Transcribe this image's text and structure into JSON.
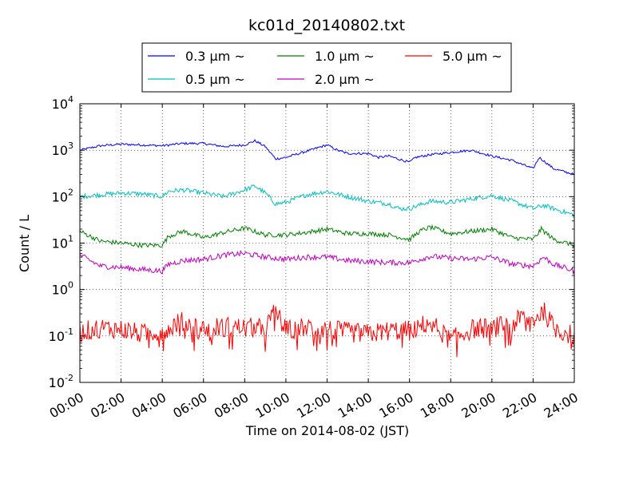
{
  "chart_data": {
    "type": "line",
    "title": "kc01d_20140802.txt",
    "xlabel": "Time on 2014-08-02 (JST)",
    "ylabel": "Count / L",
    "yscale": "log",
    "grid": true,
    "legend_position": "top-center, above plot, 3 columns",
    "x_ticks": [
      "00:00",
      "02:00",
      "04:00",
      "06:00",
      "08:00",
      "10:00",
      "12:00",
      "14:00",
      "16:00",
      "18:00",
      "20:00",
      "22:00",
      "24:00"
    ],
    "y_ticks": [
      {
        "base": "10",
        "exp": "-2"
      },
      {
        "base": "10",
        "exp": "-1"
      },
      {
        "base": "10",
        "exp": "0"
      },
      {
        "base": "10",
        "exp": "1"
      },
      {
        "base": "10",
        "exp": "2"
      },
      {
        "base": "10",
        "exp": "3"
      },
      {
        "base": "10",
        "exp": "4"
      }
    ],
    "ylim": [
      0.01,
      10000
    ],
    "xlim_hours": [
      0,
      24
    ],
    "series": [
      {
        "name": "0.3 μm ~",
        "color": "#0000ff",
        "x": [
          0,
          1,
          2,
          3,
          4,
          5,
          6,
          7,
          8,
          8.5,
          9,
          9.5,
          10,
          11,
          12,
          12.5,
          13,
          14,
          14.5,
          15,
          16,
          16.3,
          17,
          18,
          19,
          20,
          21,
          22,
          22.3,
          23,
          24
        ],
        "y": [
          1000,
          1250,
          1350,
          1300,
          1250,
          1400,
          1400,
          1200,
          1300,
          1600,
          1200,
          650,
          700,
          950,
          1300,
          1000,
          850,
          850,
          700,
          750,
          550,
          700,
          800,
          900,
          1000,
          750,
          600,
          400,
          700,
          400,
          300
        ]
      },
      {
        "name": "0.5 μm ~",
        "color": "#00c0c0",
        "x": [
          0,
          1,
          2,
          3,
          4,
          4.3,
          5,
          6,
          7,
          8,
          8.5,
          9,
          9.5,
          10,
          11,
          12,
          13,
          14,
          15,
          15.5,
          16,
          17,
          18,
          19,
          20,
          21,
          22,
          22.5,
          23,
          24
        ],
        "y": [
          100,
          110,
          120,
          115,
          100,
          130,
          140,
          120,
          100,
          140,
          170,
          120,
          70,
          75,
          110,
          130,
          100,
          80,
          70,
          55,
          55,
          80,
          75,
          90,
          105,
          80,
          55,
          65,
          55,
          40
        ]
      },
      {
        "name": "1.0 μm ~",
        "color": "#008000",
        "x": [
          0,
          1,
          2,
          3,
          4,
          4.3,
          5,
          6,
          7,
          8,
          9,
          10,
          11,
          12,
          13,
          14,
          15,
          16,
          16.5,
          17,
          18,
          19,
          20,
          21,
          22,
          22.4,
          23,
          24
        ],
        "y": [
          18,
          11,
          10,
          9,
          9,
          14,
          18,
          13,
          17,
          21,
          15,
          15,
          17,
          20,
          16,
          16,
          15,
          12,
          18,
          22,
          16,
          18,
          20,
          13,
          12,
          20,
          12,
          9
        ]
      },
      {
        "name": "2.0 μm ~",
        "color": "#c000c0",
        "x": [
          0,
          1,
          2,
          3,
          4,
          4.3,
          5,
          6,
          7,
          8,
          9,
          10,
          11,
          12,
          13,
          14,
          15,
          16,
          17,
          18,
          19,
          20,
          21,
          22,
          22.5,
          23,
          24
        ],
        "y": [
          5.5,
          3.2,
          3,
          2.7,
          2.5,
          3.5,
          4.2,
          4.5,
          5.5,
          6,
          5,
          4.5,
          5,
          5,
          4.2,
          4,
          3.8,
          3.8,
          5.2,
          4.7,
          4.5,
          5,
          3.5,
          3.2,
          5,
          3.5,
          2.5
        ]
      },
      {
        "name": "5.0 μm ~",
        "color": "#ff0000",
        "x": [
          0,
          1,
          2,
          3,
          4,
          4.5,
          5,
          6,
          7,
          8,
          9,
          9.5,
          10,
          11,
          12,
          13,
          14,
          15,
          16,
          16.5,
          17,
          18,
          19,
          20,
          21,
          21.5,
          22,
          22.5,
          23,
          24
        ],
        "y": [
          0.12,
          0.15,
          0.14,
          0.11,
          0.13,
          0.18,
          0.2,
          0.14,
          0.16,
          0.15,
          0.15,
          0.35,
          0.13,
          0.16,
          0.14,
          0.12,
          0.11,
          0.13,
          0.13,
          0.16,
          0.2,
          0.08,
          0.14,
          0.15,
          0.18,
          0.25,
          0.22,
          0.35,
          0.15,
          0.1
        ]
      }
    ]
  }
}
